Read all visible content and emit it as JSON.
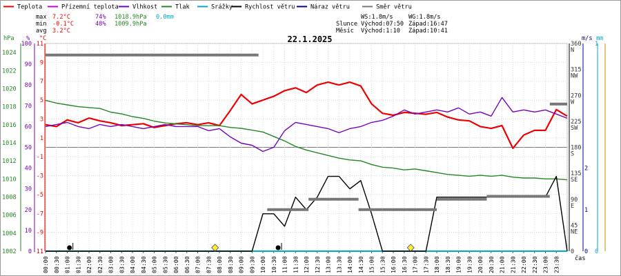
{
  "legend": [
    {
      "label": "Teplota",
      "color": "#ee0000"
    },
    {
      "label": "Přízemní teplota",
      "color": "#cc00cc"
    },
    {
      "label": "Vlhkost",
      "color": "#7700bb"
    },
    {
      "label": "Tlak",
      "color": "#228822"
    },
    {
      "label": "Srážky",
      "color": "#00aacc"
    },
    {
      "label": "Rychlost větru",
      "color": "#000000"
    },
    {
      "label": "Náraz větru",
      "color": "#000088"
    },
    {
      "label": "Směr větru",
      "color": "#777777"
    }
  ],
  "stats": {
    "max_label": "max",
    "min_label": "min",
    "avg_label": "avg",
    "max_temp": "7.2°C",
    "max_hum": "74%",
    "max_press": "1018.9hPa",
    "max_rain": "0.0mm",
    "min_temp": "-0.1°C",
    "min_hum": "48%",
    "min_press": "1009.9hPa",
    "avg_temp": "3.2°C"
  },
  "info": {
    "ws": "WS:1.8m/s",
    "wg": "WG:1.8m/s",
    "sun_label": "Slunce",
    "sun_rise": "Východ:07:50",
    "sun_set": "Západ:16:47",
    "moon_label": "Měsíc",
    "moon_rise": "Východ:1:10",
    "moon_set": "Západ:10:41"
  },
  "chart_data": {
    "type": "line",
    "title": "22.1.2025",
    "xlabel": "čas",
    "x_ticks": [
      "00:00",
      "00:30",
      "01:00",
      "01:30",
      "02:00",
      "02:30",
      "03:00",
      "03:30",
      "04:00",
      "04:30",
      "05:00",
      "05:30",
      "06:00",
      "06:30",
      "07:00",
      "07:30",
      "08:00",
      "08:30",
      "09:00",
      "09:30",
      "10:00",
      "10:30",
      "11:00",
      "11:30",
      "12:00",
      "12:30",
      "13:00",
      "13:30",
      "14:00",
      "14:30",
      "15:00",
      "15:30",
      "16:00",
      "16:30",
      "17:00",
      "17:30",
      "18:00",
      "18:30",
      "19:00",
      "19:30",
      "20:00",
      "20:30",
      "21:00",
      "21:30",
      "22:00",
      "22:30",
      "23:00",
      "23:30"
    ],
    "axes": {
      "pressure": {
        "unit": "hPa",
        "ticks": [
          "1024",
          "1022",
          "1020",
          "1018",
          "1016",
          "1014",
          "1012",
          "1010",
          "1008",
          "1006",
          "1004",
          "1002"
        ],
        "range": [
          1002,
          1025
        ]
      },
      "humidity": {
        "unit": "%",
        "ticks": [
          "100",
          "90",
          "80",
          "70",
          "60",
          "50",
          "40",
          "30",
          "20",
          "10",
          "0"
        ],
        "range": [
          0,
          100
        ]
      },
      "temperature": {
        "unit": "°C",
        "ticks": [
          "11",
          "9",
          "7",
          "5",
          "3",
          "1",
          "-1",
          "-3",
          "-5",
          "-7",
          "-9",
          "-11"
        ],
        "range": [
          -11,
          11
        ]
      },
      "direction": {
        "unit": "°",
        "ticks": [
          "360",
          "315",
          "270",
          "225",
          "180",
          "135",
          "90",
          "45",
          "0"
        ],
        "labels": [
          "N",
          "NW",
          "W",
          "SW",
          "S",
          "SE",
          "E",
          "NE"
        ],
        "range": [
          0,
          360
        ]
      },
      "wind": {
        "unit": "m/s",
        "ticks": [
          "2",
          "1",
          "0"
        ],
        "range": [
          0,
          2
        ]
      },
      "rain": {
        "unit": "mm",
        "ticks": [
          "1",
          "0"
        ],
        "range": [
          0,
          1
        ]
      }
    },
    "hours": [
      0,
      0.5,
      1,
      1.5,
      2,
      2.5,
      3,
      3.5,
      4,
      4.5,
      5,
      5.5,
      6,
      6.5,
      7,
      7.5,
      8,
      8.5,
      9,
      9.5,
      10,
      10.5,
      11,
      11.5,
      12,
      12.5,
      13,
      13.5,
      14,
      14.5,
      15,
      15.5,
      16,
      16.5,
      17,
      17.5,
      18,
      18.5,
      19,
      19.5,
      20,
      20.5,
      21,
      21.5,
      22,
      22.5,
      23,
      23.5,
      24
    ],
    "series": [
      {
        "name": "Teplota",
        "axis": "temperature",
        "color": "#ee0000",
        "values": [
          2.4,
          2.2,
          2.9,
          2.6,
          3.1,
          2.8,
          2.6,
          2.3,
          2.4,
          2.5,
          2.1,
          2.3,
          2.5,
          2.6,
          2.4,
          2.6,
          2.3,
          3.9,
          5.6,
          4.6,
          5.0,
          5.4,
          6.0,
          6.3,
          5.8,
          6.6,
          6.9,
          6.6,
          6.9,
          6.5,
          4.6,
          3.6,
          3.4,
          3.7,
          3.6,
          3.5,
          3.7,
          3.2,
          2.9,
          2.8,
          2.2,
          2.0,
          2.3,
          -0.1,
          1.3,
          1.8,
          1.8,
          4.0,
          3.3
        ]
      },
      {
        "name": "Vlhkost",
        "axis": "humidity",
        "color": "#7700bb",
        "values": [
          60,
          61,
          62,
          60,
          59,
          61,
          60,
          61,
          60,
          59,
          60,
          61,
          60,
          60,
          60,
          58,
          59,
          55,
          52,
          51,
          48,
          50,
          58,
          62,
          61,
          60,
          59,
          57,
          59,
          60,
          62,
          63,
          65,
          68,
          66,
          67,
          68,
          67,
          69,
          66,
          67,
          65,
          74,
          67,
          68,
          67,
          68,
          66,
          64
        ]
      },
      {
        "name": "Tlak",
        "axis": "pressure",
        "color": "#228822",
        "values": [
          1018.7,
          1018.4,
          1018.2,
          1018.0,
          1017.9,
          1017.8,
          1017.4,
          1017.2,
          1016.9,
          1016.7,
          1016.4,
          1016.2,
          1016.1,
          1016.0,
          1015.9,
          1015.9,
          1015.9,
          1015.7,
          1015.6,
          1015.4,
          1015.2,
          1014.7,
          1014.2,
          1013.6,
          1013.2,
          1012.9,
          1012.6,
          1012.3,
          1012.1,
          1012.0,
          1011.6,
          1011.3,
          1011.2,
          1011.0,
          1011.1,
          1010.9,
          1010.7,
          1010.5,
          1010.4,
          1010.3,
          1010.4,
          1010.3,
          1010.4,
          1010.2,
          1010.1,
          1010.1,
          1010.0,
          1010.0,
          1009.9
        ]
      },
      {
        "name": "Srážky",
        "axis": "rain",
        "color": "#00aacc",
        "values": [
          0,
          0,
          0,
          0,
          0,
          0,
          0,
          0,
          0,
          0,
          0,
          0,
          0,
          0,
          0,
          0,
          0,
          0,
          0,
          0,
          0,
          0,
          0,
          0,
          0,
          0,
          0,
          0,
          0,
          0,
          0,
          0,
          0,
          0,
          0,
          0,
          0,
          0,
          0,
          0,
          0,
          0,
          0,
          0,
          0,
          0,
          0,
          0,
          0
        ]
      },
      {
        "name": "Rychlost větru",
        "axis": "wind",
        "color": "#000000",
        "values": [
          0,
          0,
          0,
          0,
          0,
          0,
          0,
          0,
          0,
          0,
          0,
          0,
          0,
          0,
          0,
          0,
          0,
          0,
          0,
          0,
          0.9,
          0.9,
          0.6,
          1.3,
          1.0,
          1.3,
          1.8,
          1.8,
          1.5,
          1.7,
          0.9,
          0,
          0,
          0,
          0,
          0,
          1.3,
          1.3,
          1.3,
          1.3,
          1.3,
          1.3,
          1.3,
          1.3,
          1.3,
          1.3,
          1.3,
          1.8,
          0
        ]
      }
    ],
    "wind_direction_blocks": [
      {
        "from_hour": 0.0,
        "to_hour": 9.8,
        "deg": 340
      },
      {
        "from_hour": 10.2,
        "to_hour": 12.1,
        "deg": 72
      },
      {
        "from_hour": 12.1,
        "to_hour": 14.4,
        "deg": 90
      },
      {
        "from_hour": 14.4,
        "to_hour": 15.5,
        "deg": 72
      },
      {
        "from_hour": 15.5,
        "to_hour": 18.0,
        "deg": 72
      },
      {
        "from_hour": 18.0,
        "to_hour": 20.3,
        "deg": 90
      },
      {
        "from_hour": 20.3,
        "to_hour": 23.2,
        "deg": 95
      },
      {
        "from_hour": 23.2,
        "to_hour": 24.0,
        "deg": 255
      }
    ],
    "markers": [
      {
        "hour": 1.1,
        "type": "moonrise"
      },
      {
        "hour": 7.8,
        "type": "sunrise"
      },
      {
        "hour": 10.7,
        "type": "moonset"
      },
      {
        "hour": 16.8,
        "type": "sunset"
      }
    ],
    "grid": true
  }
}
